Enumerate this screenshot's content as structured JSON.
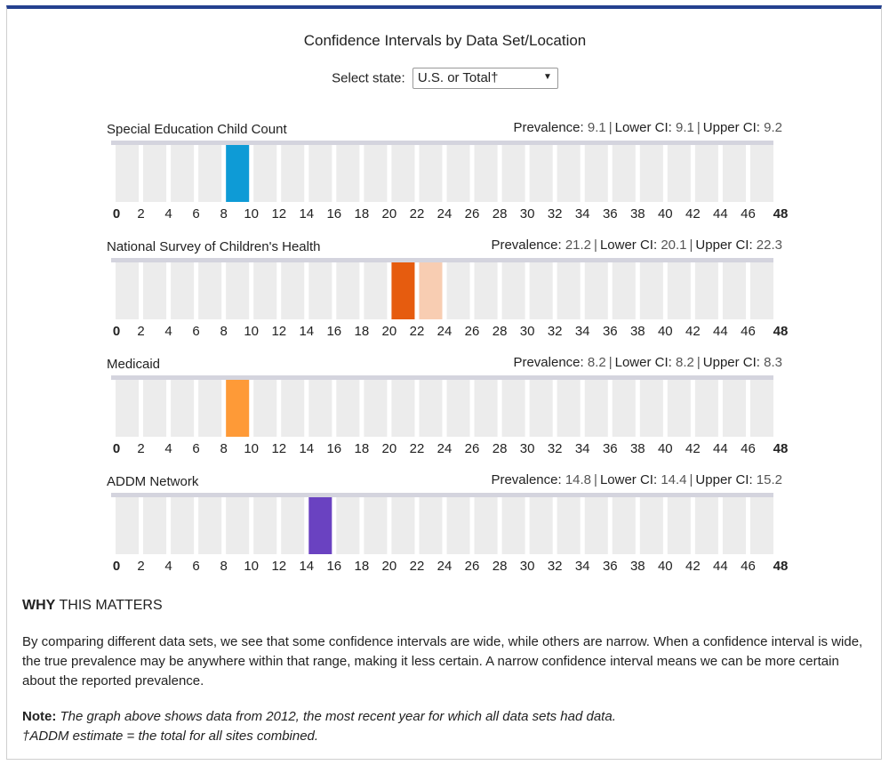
{
  "page": {
    "title": "Confidence Intervals by Data Set/Location",
    "select_label": "Select state:",
    "select_value": "U.S. or Total†",
    "why_bold": "WHY",
    "why_rest": " THIS MATTERS",
    "why_text": "By comparing different data sets, we see that some confidence intervals are wide, while others are narrow. When a confidence interval is wide, the true prevalence may be anywhere within that range, making it less certain. A narrow confidence interval means we can be more certain about the reported prevalence.",
    "note_label": "Note:",
    "note_text": "The graph above shows data from 2012, the most recent year for which all data sets had data.",
    "footnote": "†ADDM estimate = the total for all sites combined.",
    "stat_labels": {
      "prevalence": "Prevalence:",
      "lower": "Lower CI:",
      "upper": "Upper CI:"
    }
  },
  "colors": {
    "header_bar": "#24418f",
    "cell_empty": "#ececec",
    "rail": "#d4d4de"
  },
  "chart_data": [
    {
      "type": "bar",
      "title": "Special Education Child Count",
      "prevalence": 9.1,
      "lower_ci": 9.1,
      "upper_ci": 9.2,
      "prevalence_label": "9.1",
      "lower_label": "9.1",
      "upper_label": "9.2",
      "color": "#0e9bd6",
      "ci_color": "#0e9bd6",
      "xlim": [
        0,
        48
      ],
      "ticks": [
        "0",
        "2",
        "4",
        "6",
        "8",
        "10",
        "12",
        "14",
        "16",
        "18",
        "20",
        "22",
        "24",
        "26",
        "28",
        "30",
        "32",
        "34",
        "36",
        "38",
        "40",
        "42",
        "44",
        "46",
        "48"
      ]
    },
    {
      "type": "bar",
      "title": "National Survey of Children's Health",
      "prevalence": 21.2,
      "lower_ci": 20.1,
      "upper_ci": 22.3,
      "prevalence_label": "21.2",
      "lower_label": "20.1",
      "upper_label": "22.3",
      "color": "#e65c0f",
      "ci_color": "#f8cdb2",
      "xlim": [
        0,
        48
      ],
      "ticks": [
        "0",
        "2",
        "4",
        "6",
        "8",
        "10",
        "12",
        "14",
        "16",
        "18",
        "20",
        "22",
        "24",
        "26",
        "28",
        "30",
        "32",
        "34",
        "36",
        "38",
        "40",
        "42",
        "44",
        "46",
        "48"
      ]
    },
    {
      "type": "bar",
      "title": "Medicaid",
      "prevalence": 8.2,
      "lower_ci": 8.2,
      "upper_ci": 8.3,
      "prevalence_label": "8.2",
      "lower_label": "8.2",
      "upper_label": "8.3",
      "color": "#fe9a37",
      "ci_color": "#fe9a37",
      "xlim": [
        0,
        48
      ],
      "ticks": [
        "0",
        "2",
        "4",
        "6",
        "8",
        "10",
        "12",
        "14",
        "16",
        "18",
        "20",
        "22",
        "24",
        "26",
        "28",
        "30",
        "32",
        "34",
        "36",
        "38",
        "40",
        "42",
        "44",
        "46",
        "48"
      ]
    },
    {
      "type": "bar",
      "title": "ADDM Network",
      "prevalence": 14.8,
      "lower_ci": 14.4,
      "upper_ci": 15.2,
      "prevalence_label": "14.8",
      "lower_label": "14.4",
      "upper_label": "15.2",
      "color": "#6a42c1",
      "ci_color": "#6a42c1",
      "xlim": [
        0,
        48
      ],
      "ticks": [
        "0",
        "2",
        "4",
        "6",
        "8",
        "10",
        "12",
        "14",
        "16",
        "18",
        "20",
        "22",
        "24",
        "26",
        "28",
        "30",
        "32",
        "34",
        "36",
        "38",
        "40",
        "42",
        "44",
        "46",
        "48"
      ]
    }
  ]
}
